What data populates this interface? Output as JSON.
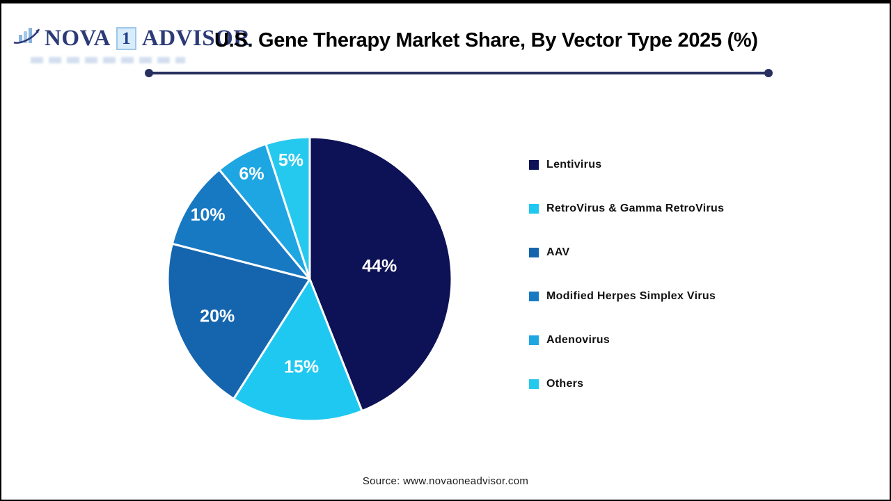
{
  "header": {
    "logo": {
      "icon": "bar-chart-swoosh-icon",
      "brand_part1": "NOVA",
      "brand_digit": "1",
      "brand_part2": "ADVISOR"
    },
    "title": "U.S. Gene Therapy Market Share, By Vector Type 2025 (%)"
  },
  "chart_data": {
    "type": "pie",
    "title": "U.S. Gene Therapy Market Share, By Vector Type 2025 (%)",
    "unit": "%",
    "start_angle_deg": 0,
    "direction": "clockwise",
    "legend_position": "right",
    "categories": [
      "Lentivirus",
      "RetroVirus & Gamma RetroVirus",
      "AAV",
      "Modified Herpes Simplex Virus",
      "Adenovirus",
      "Others"
    ],
    "values": [
      44,
      15,
      20,
      10,
      6,
      5
    ],
    "slices": [
      {
        "label": "Lentivirus",
        "value": 44,
        "data_label": "44%",
        "color": "#0d1155"
      },
      {
        "label": "RetroVirus & Gamma RetroVirus",
        "value": 15,
        "data_label": "15%",
        "color": "#1fc8f0"
      },
      {
        "label": "AAV",
        "value": 20,
        "data_label": "20%",
        "color": "#1565ae"
      },
      {
        "label": "Modified Herpes Simplex Virus",
        "value": 10,
        "data_label": "10%",
        "color": "#1879c3"
      },
      {
        "label": "Adenovirus",
        "value": 6,
        "data_label": "6%",
        "color": "#1ea6e3"
      },
      {
        "label": "Others",
        "value": 5,
        "data_label": "5%",
        "color": "#25c9ee"
      }
    ]
  },
  "footer": {
    "source": "Source: www.novaoneadvisor.com"
  },
  "style": {
    "divider_color": "#27305f",
    "logo_navy": "#2c3a78",
    "percent_label_color": "#ffffff",
    "slice_stroke": "#ffffff"
  }
}
